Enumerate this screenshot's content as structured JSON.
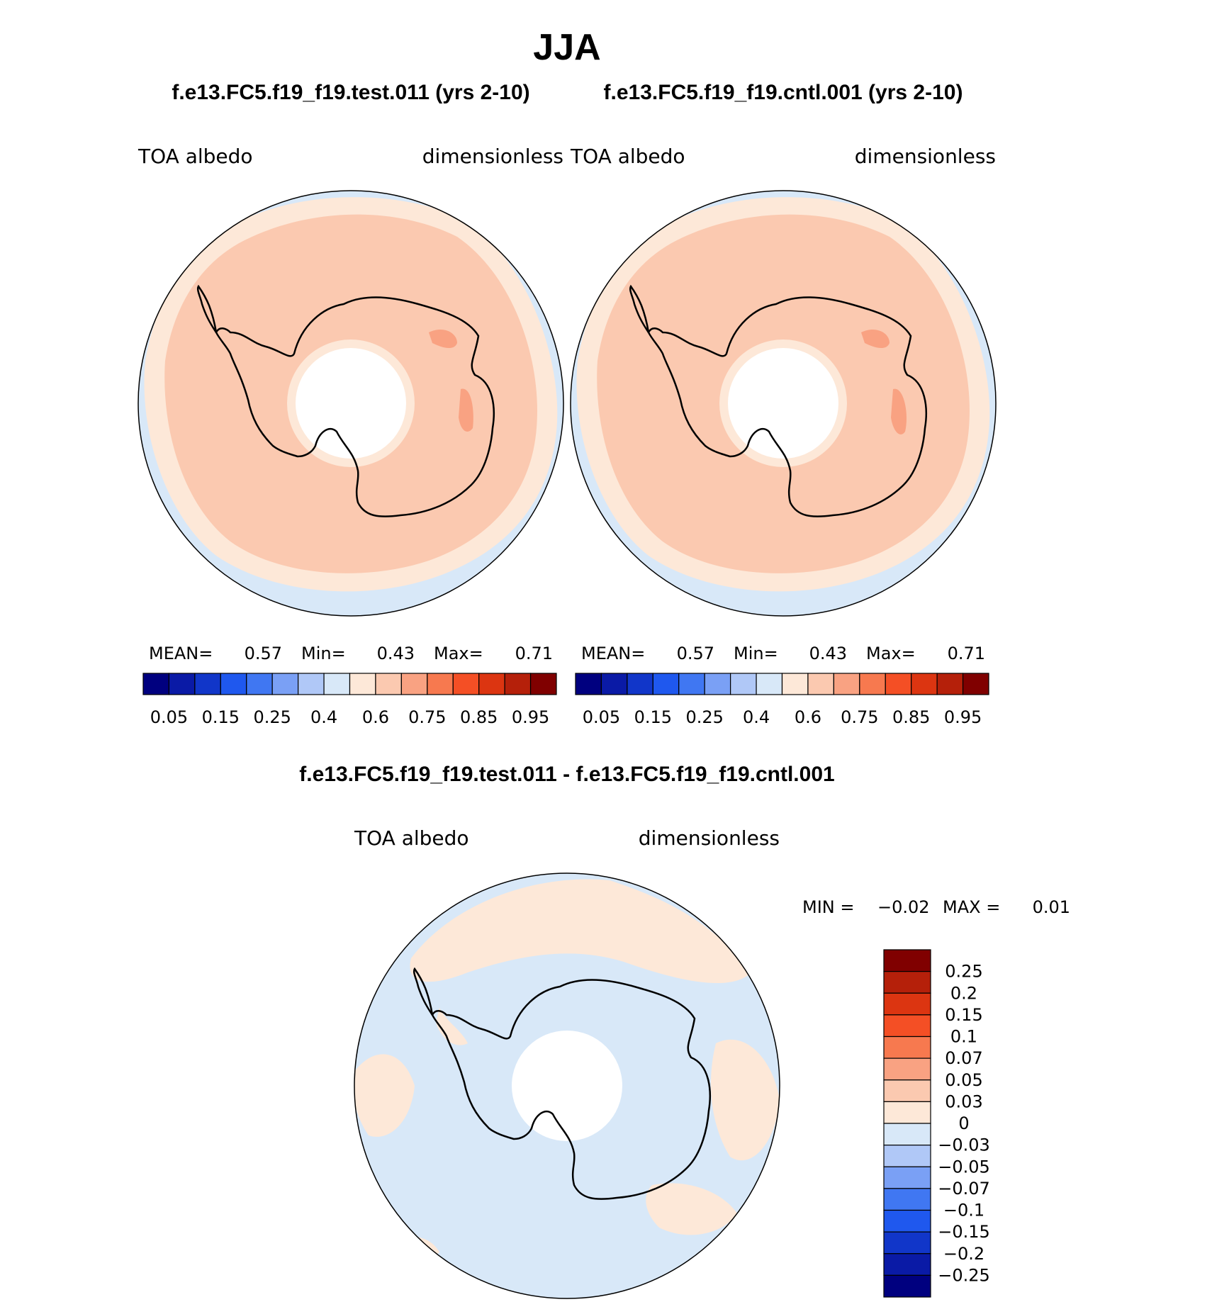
{
  "main_title": "JJA",
  "panel_left": {
    "case": "f.e13.FC5.f19_f19.test.011 (yrs 2-10)",
    "variable": "TOA  albedo",
    "units": "dimensionless",
    "stats": {
      "mean_label": "MEAN=",
      "mean": "0.57",
      "min_label": "Min=",
      "min": "0.43",
      "max_label": "Max=",
      "max": "0.71"
    }
  },
  "panel_right": {
    "case": "f.e13.FC5.f19_f19.cntl.001 (yrs 2-10)",
    "variable": "TOA  albedo",
    "units": "dimensionless",
    "stats": {
      "mean_label": "MEAN=",
      "mean": "0.57",
      "min_label": "Min=",
      "min": "0.43",
      "max_label": "Max=",
      "max": "0.71"
    }
  },
  "colorbar_top": {
    "colors": [
      "#00007f",
      "#0a1aa6",
      "#1136c9",
      "#1f58ee",
      "#4077f2",
      "#7aa0f5",
      "#b0c8f7",
      "#d8e8f8",
      "#fde8d8",
      "#fbc9b0",
      "#f9a282",
      "#f7794f",
      "#f44f25",
      "#dc3511",
      "#b5200a",
      "#800000"
    ],
    "labels": [
      "0.05",
      "0.15",
      "0.25",
      "0.4",
      "0.6",
      "0.75",
      "0.85",
      "0.95"
    ]
  },
  "panel_diff": {
    "case": "f.e13.FC5.f19_f19.test.011 - f.e13.FC5.f19_f19.cntl.001",
    "variable": "TOA  albedo",
    "units": "dimensionless",
    "min_label": "MIN =",
    "min": "−0.02",
    "max_label": "MAX =",
    "max": "0.01"
  },
  "colorbar_diff": {
    "colors": [
      "#800000",
      "#b5200a",
      "#dc3511",
      "#f44f25",
      "#f7794f",
      "#f9a282",
      "#fbc9b0",
      "#fde8d8",
      "#d8e8f8",
      "#b0c8f7",
      "#7aa0f5",
      "#4077f2",
      "#1f58ee",
      "#1136c9",
      "#0a1aa6",
      "#00007f"
    ],
    "labels": [
      "0.25",
      "0.2",
      "0.15",
      "0.1",
      "0.07",
      "0.05",
      "0.03",
      "0",
      "−0.03",
      "−0.05",
      "−0.07",
      "−0.1",
      "−0.15",
      "−0.2",
      "−0.25"
    ]
  },
  "fill_colors": {
    "low": "#d8e8f8",
    "mid": "#fde8d8",
    "high": "#fbc9b0",
    "peak": "#f9a282",
    "coast": "#000000"
  }
}
